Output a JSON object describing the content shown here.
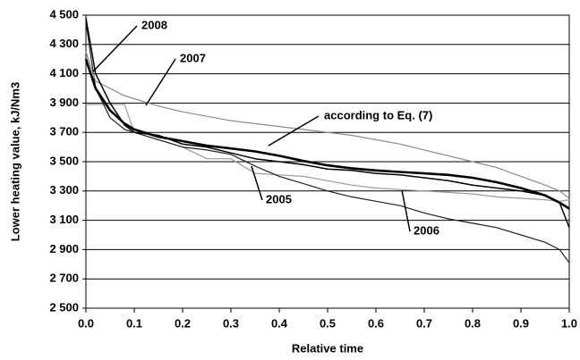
{
  "chart_data": {
    "type": "line",
    "xlabel": "Relative time",
    "ylabel": "Lower heating value, kJ/Nm3",
    "x": [
      0,
      0.02,
      0.05,
      0.08,
      0.1,
      0.15,
      0.2,
      0.25,
      0.3,
      0.35,
      0.4,
      0.45,
      0.5,
      0.55,
      0.6,
      0.65,
      0.7,
      0.75,
      0.8,
      0.85,
      0.9,
      0.95,
      0.98,
      1.0
    ],
    "series": [
      {
        "name": "2005",
        "color": "#9a9a9a",
        "values": [
          3890,
          3890,
          3890,
          3890,
          3700,
          3650,
          3600,
          3520,
          3520,
          3420,
          3410,
          3400,
          3370,
          3340,
          3320,
          3310,
          3300,
          3290,
          3280,
          3260,
          3250,
          3240,
          3230,
          3240
        ]
      },
      {
        "name": "2006",
        "color": "#222222",
        "values": [
          4450,
          4000,
          3800,
          3720,
          3700,
          3650,
          3600,
          3580,
          3550,
          3470,
          3400,
          3350,
          3300,
          3260,
          3230,
          3200,
          3150,
          3110,
          3080,
          3050,
          3000,
          2950,
          2900,
          2810
        ]
      },
      {
        "name": "2007",
        "color": "#8a8a8a",
        "values": [
          4250,
          4050,
          4000,
          3950,
          3930,
          3880,
          3840,
          3810,
          3780,
          3760,
          3740,
          3720,
          3700,
          3680,
          3650,
          3620,
          3580,
          3540,
          3500,
          3460,
          3400,
          3340,
          3300,
          3250
        ]
      },
      {
        "name": "2008",
        "color": "#000000",
        "values": [
          4480,
          4100,
          3900,
          3750,
          3700,
          3680,
          3620,
          3600,
          3560,
          3520,
          3500,
          3480,
          3450,
          3440,
          3420,
          3410,
          3390,
          3370,
          3340,
          3320,
          3300,
          3270,
          3220,
          3050
        ]
      },
      {
        "name": "according to Eq. (7)",
        "color": "#000000",
        "values": [
          4200,
          4000,
          3850,
          3760,
          3720,
          3670,
          3640,
          3610,
          3590,
          3570,
          3540,
          3505,
          3475,
          3455,
          3440,
          3430,
          3420,
          3410,
          3390,
          3360,
          3320,
          3270,
          3220,
          3180
        ]
      }
    ],
    "xlim": [
      0,
      1
    ],
    "xticks": [
      {
        "value": 0,
        "label": "0.0"
      },
      0.1,
      0.2,
      0.3,
      0.4,
      0.5,
      0.6,
      0.7,
      0.8,
      0.9,
      {
        "value": 1,
        "label": "1.0"
      }
    ],
    "ylim": [
      2500,
      4500
    ],
    "yticks": [
      {
        "value": 2500,
        "label": "2 500"
      },
      {
        "value": 2700,
        "label": "2 700"
      },
      {
        "value": 2900,
        "label": "2 900"
      },
      {
        "value": 3100,
        "label": "3 100"
      },
      {
        "value": 3300,
        "label": "3 300"
      },
      {
        "value": 3500,
        "label": "3 500"
      },
      {
        "value": 3700,
        "label": "3 700"
      },
      {
        "value": 3900,
        "label": "3 900"
      },
      {
        "value": 4100,
        "label": "4 100"
      },
      {
        "value": 4300,
        "label": "4 300"
      },
      {
        "value": 4500,
        "label": "4 500"
      }
    ],
    "grid": true
  }
}
